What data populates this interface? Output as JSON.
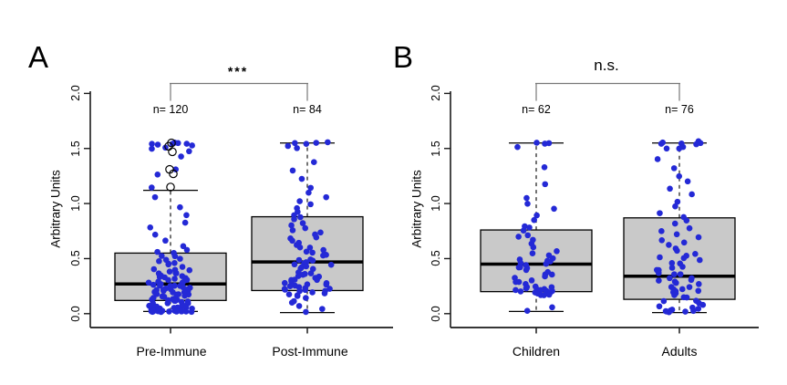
{
  "figure": {
    "background": "#ffffff"
  },
  "colors": {
    "dot": "#2429d6",
    "box_fill": "#c9c9c9",
    "box_border": "#000000",
    "median": "#000000",
    "axis": "#1a1a1a",
    "bracket": "#777777",
    "outlier_ring": "#000000"
  },
  "chart_data": [
    {
      "type": "boxplot-jitter",
      "letter": "A",
      "ylabel": "Arbitrary Units",
      "ylim": [
        0,
        2
      ],
      "yticks": [
        "0.0",
        "0.5",
        "1.0",
        "1.5",
        "2.0"
      ],
      "significance": "***",
      "categories": [
        "Pre-Immune",
        "Post-Immune"
      ],
      "groups": [
        {
          "label": "Pre-Immune",
          "n": 120,
          "n_label": "n= 120",
          "stats": {
            "whisker_low": 0.02,
            "q1": 0.12,
            "median": 0.27,
            "q3": 0.55,
            "whisker_high": 1.12
          },
          "outliers": [
            1.55,
            1.52,
            1.47,
            1.31,
            1.27,
            1.15
          ],
          "points": [
            1.55,
            1.55,
            1.55,
            1.55,
            1.55,
            1.53,
            1.52,
            1.5,
            1.5,
            1.48,
            1.42,
            1.31,
            1.27,
            1.15,
            1.05,
            0.97,
            0.9,
            0.83,
            0.78,
            0.72,
            0.66,
            0.61,
            0.58,
            0.56,
            0.55,
            0.53,
            0.52,
            0.5,
            0.49,
            0.47,
            0.46,
            0.45,
            0.44,
            0.42,
            0.41,
            0.4,
            0.39,
            0.38,
            0.37,
            0.36,
            0.36,
            0.35,
            0.34,
            0.33,
            0.33,
            0.32,
            0.31,
            0.31,
            0.3,
            0.3,
            0.29,
            0.28,
            0.28,
            0.27,
            0.27,
            0.26,
            0.26,
            0.25,
            0.25,
            0.24,
            0.24,
            0.23,
            0.23,
            0.22,
            0.22,
            0.21,
            0.21,
            0.2,
            0.2,
            0.19,
            0.19,
            0.18,
            0.18,
            0.17,
            0.17,
            0.16,
            0.16,
            0.15,
            0.15,
            0.14,
            0.14,
            0.13,
            0.13,
            0.12,
            0.12,
            0.11,
            0.11,
            0.1,
            0.1,
            0.09,
            0.09,
            0.08,
            0.08,
            0.07,
            0.07,
            0.06,
            0.06,
            0.05,
            0.05,
            0.05,
            0.04,
            0.04,
            0.04,
            0.03,
            0.03,
            0.03,
            0.03,
            0.02,
            0.02,
            0.02,
            0.02,
            0.02,
            0.02,
            0.02,
            0.02,
            0.02,
            0.02,
            0.02,
            0.02,
            0.02
          ]
        },
        {
          "label": "Post-Immune",
          "n": 84,
          "n_label": "n= 84",
          "stats": {
            "whisker_low": 0.01,
            "q1": 0.21,
            "median": 0.47,
            "q3": 0.88,
            "whisker_high": 1.55
          },
          "outliers": [],
          "points": [
            1.55,
            1.55,
            1.55,
            1.55,
            1.53,
            1.5,
            1.38,
            1.3,
            1.22,
            1.15,
            1.1,
            1.05,
            1.02,
            1.0,
            0.95,
            0.92,
            0.9,
            0.88,
            0.85,
            0.83,
            0.8,
            0.78,
            0.76,
            0.74,
            0.72,
            0.7,
            0.68,
            0.66,
            0.64,
            0.62,
            0.6,
            0.6,
            0.58,
            0.57,
            0.55,
            0.53,
            0.52,
            0.5,
            0.49,
            0.48,
            0.47,
            0.46,
            0.45,
            0.44,
            0.43,
            0.42,
            0.41,
            0.4,
            0.38,
            0.37,
            0.36,
            0.35,
            0.34,
            0.33,
            0.32,
            0.31,
            0.3,
            0.3,
            0.29,
            0.28,
            0.27,
            0.27,
            0.26,
            0.25,
            0.25,
            0.24,
            0.23,
            0.23,
            0.22,
            0.22,
            0.21,
            0.21,
            0.2,
            0.2,
            0.19,
            0.18,
            0.17,
            0.16,
            0.15,
            0.12,
            0.1,
            0.07,
            0.04,
            0.02
          ]
        }
      ]
    },
    {
      "type": "boxplot-jitter",
      "letter": "B",
      "ylabel": "Arbitrary Units",
      "ylim": [
        0,
        2
      ],
      "yticks": [
        "0.0",
        "0.5",
        "1.0",
        "1.5",
        "2.0"
      ],
      "significance": "n.s.",
      "categories": [
        "Children",
        "Adults"
      ],
      "groups": [
        {
          "label": "Children",
          "n": 62,
          "n_label": "n= 62",
          "stats": {
            "whisker_low": 0.02,
            "q1": 0.2,
            "median": 0.45,
            "q3": 0.76,
            "whisker_high": 1.55
          },
          "outliers": [],
          "points": [
            1.55,
            1.55,
            1.55,
            1.52,
            1.33,
            1.18,
            1.05,
            1.0,
            0.95,
            0.9,
            0.85,
            0.8,
            0.78,
            0.75,
            0.72,
            0.7,
            0.67,
            0.63,
            0.6,
            0.57,
            0.55,
            0.53,
            0.51,
            0.5,
            0.48,
            0.47,
            0.46,
            0.45,
            0.44,
            0.43,
            0.42,
            0.41,
            0.4,
            0.38,
            0.36,
            0.35,
            0.33,
            0.32,
            0.3,
            0.29,
            0.28,
            0.27,
            0.25,
            0.24,
            0.24,
            0.23,
            0.23,
            0.22,
            0.22,
            0.21,
            0.21,
            0.2,
            0.2,
            0.2,
            0.19,
            0.19,
            0.18,
            0.18,
            0.17,
            0.16,
            0.05,
            0.02
          ]
        },
        {
          "label": "Adults",
          "n": 76,
          "n_label": "n= 76",
          "stats": {
            "whisker_low": 0.01,
            "q1": 0.13,
            "median": 0.34,
            "q3": 0.87,
            "whisker_high": 1.55
          },
          "outliers": [],
          "points": [
            1.57,
            1.55,
            1.55,
            1.55,
            1.55,
            1.53,
            1.52,
            1.5,
            1.5,
            1.4,
            1.32,
            1.25,
            1.2,
            1.13,
            1.08,
            1.02,
            0.98,
            0.92,
            0.88,
            0.85,
            0.82,
            0.78,
            0.75,
            0.72,
            0.7,
            0.67,
            0.64,
            0.62,
            0.6,
            0.57,
            0.55,
            0.53,
            0.51,
            0.5,
            0.48,
            0.46,
            0.45,
            0.43,
            0.42,
            0.4,
            0.39,
            0.37,
            0.36,
            0.35,
            0.33,
            0.32,
            0.31,
            0.3,
            0.29,
            0.28,
            0.27,
            0.25,
            0.24,
            0.23,
            0.22,
            0.21,
            0.2,
            0.19,
            0.18,
            0.17,
            0.15,
            0.14,
            0.12,
            0.11,
            0.1,
            0.08,
            0.07,
            0.06,
            0.04,
            0.03,
            0.03,
            0.02,
            0.02,
            0.02,
            0.02,
            0.02
          ]
        }
      ]
    }
  ]
}
